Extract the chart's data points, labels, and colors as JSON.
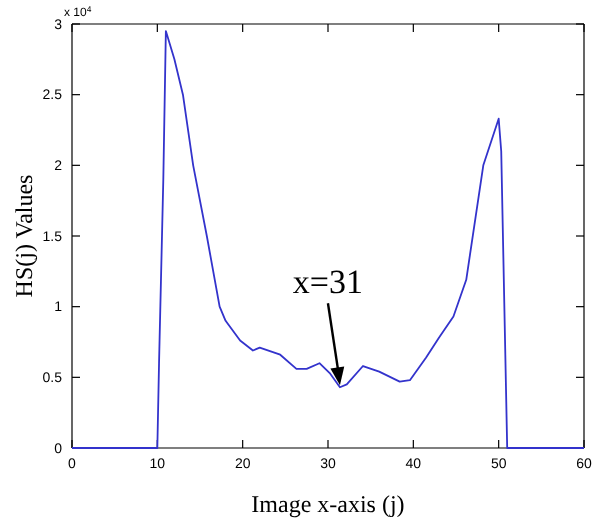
{
  "chart_data": {
    "type": "line",
    "xlabel": "Image x-axis (j)",
    "ylabel": "HS(j) Values",
    "x": [
      0,
      10,
      10.2,
      10.7,
      11,
      12,
      13,
      14.2,
      15.8,
      17.3,
      18,
      19.7,
      21.2,
      22,
      24.4,
      26.3,
      27.5,
      29,
      30.2,
      31.4,
      32.2,
      34.1,
      36,
      38.4,
      39.6,
      41.5,
      43,
      44.7,
      46.2,
      48.2,
      50,
      50.3,
      51,
      60
    ],
    "series": [
      {
        "color": "#3333cc",
        "values": [
          0,
          0,
          0.6,
          1.9,
          2.95,
          2.75,
          2.5,
          2.0,
          1.5,
          1.0,
          0.9,
          0.76,
          0.69,
          0.71,
          0.66,
          0.56,
          0.56,
          0.6,
          0.53,
          0.43,
          0.45,
          0.58,
          0.54,
          0.47,
          0.48,
          0.64,
          0.78,
          0.93,
          1.19,
          2.0,
          2.33,
          2.1,
          0,
          0
        ]
      }
    ],
    "xlim": [
      0,
      60
    ],
    "xticks": [
      0,
      10,
      20,
      30,
      40,
      50,
      60
    ],
    "ylim": [
      0,
      3
    ],
    "yticks": [
      0,
      0.5,
      1,
      1.5,
      2,
      2.5,
      3
    ],
    "annotations": [
      "x 10$^{4}$",
      {
        "text": "x=31",
        "x": 31.4,
        "y": 0.43
      }
    ],
    "grid": false,
    "line_style": "solid",
    "marker": "none"
  }
}
